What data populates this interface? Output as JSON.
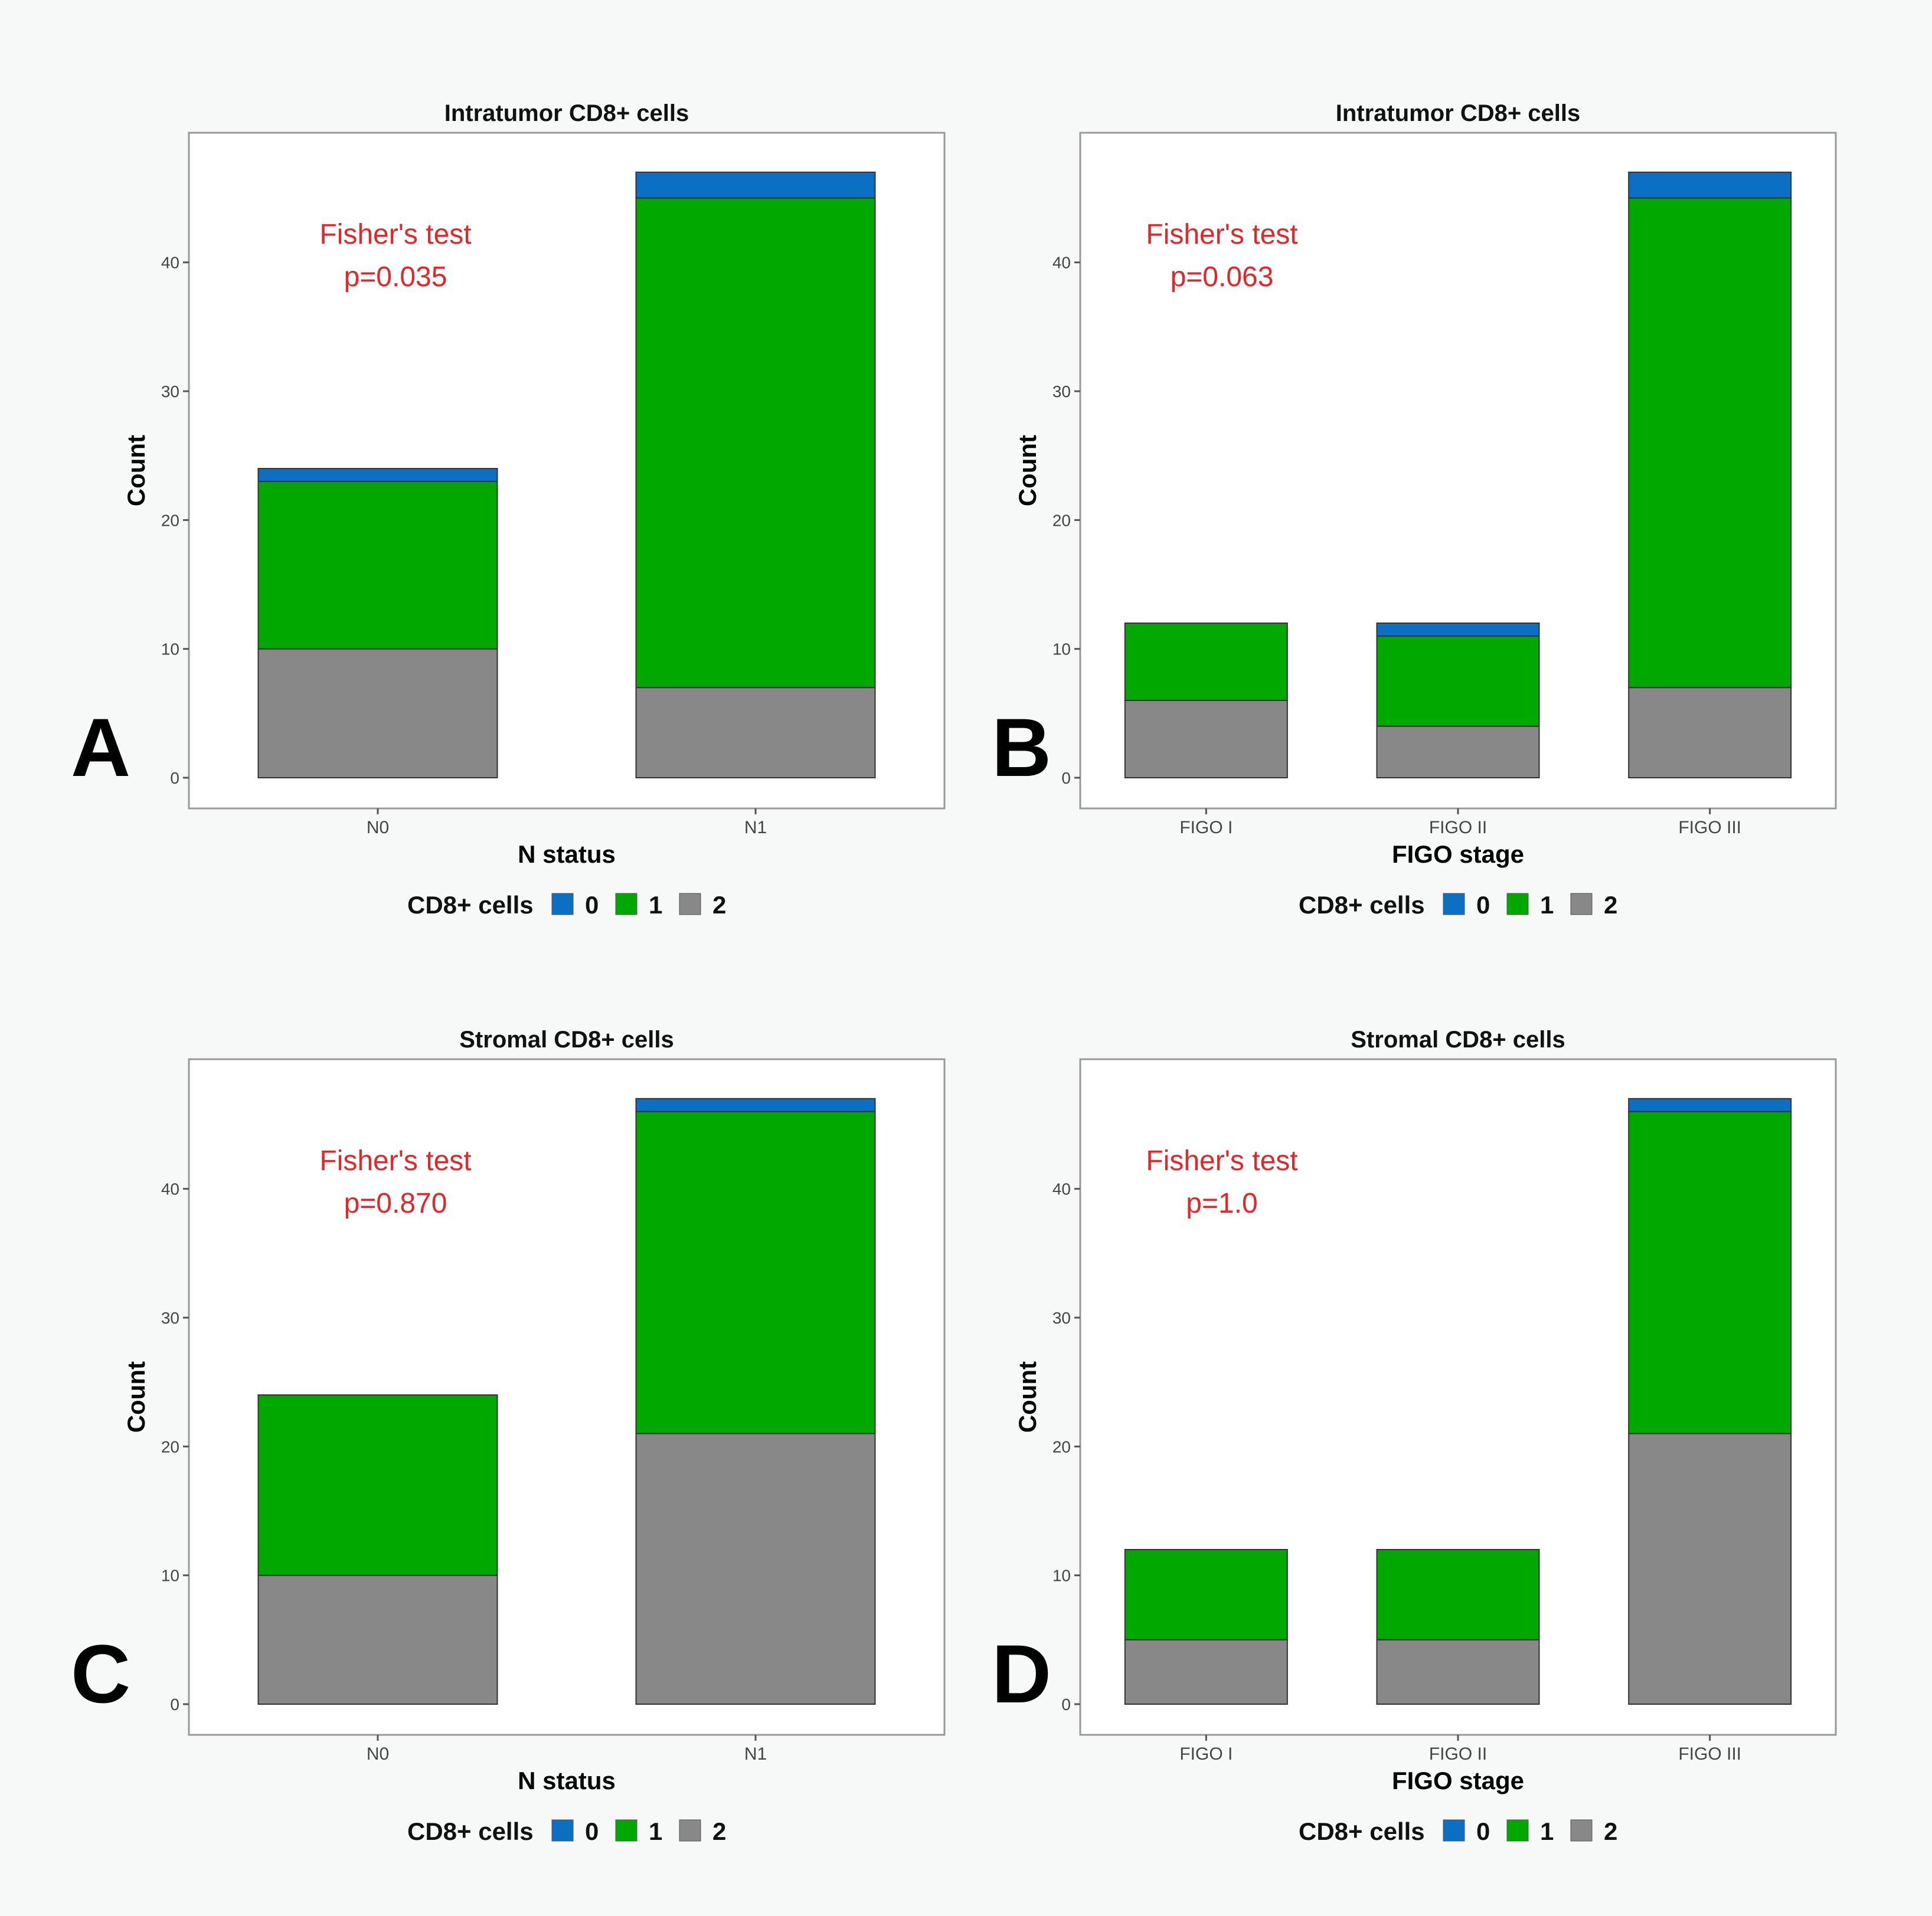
{
  "colors": {
    "0": "#0b6fc4",
    "1": "#00a800",
    "2": "#888888",
    "annotation": "#e02828",
    "background": "#f6f9f7"
  },
  "chart_data": [
    {
      "panel": "A",
      "type": "bar",
      "stacked": true,
      "title": "Intratumor CD8+ cells",
      "xlabel": "N status",
      "ylabel": "Count",
      "ylim": [
        0,
        48
      ],
      "yticks": [
        "0",
        "10",
        "20",
        "30",
        "40"
      ],
      "categories": [
        "N0",
        "N1"
      ],
      "series": [
        {
          "name": "2",
          "values": [
            10,
            7
          ]
        },
        {
          "name": "1",
          "values": [
            13,
            38
          ]
        },
        {
          "name": "0",
          "values": [
            1,
            2
          ]
        }
      ],
      "annotation": [
        "Fisher's test",
        "p=0.035"
      ],
      "legend": {
        "title": "CD8+ cells",
        "entries": [
          "0",
          "1",
          "2"
        ],
        "position": "bottom"
      }
    },
    {
      "panel": "B",
      "type": "bar",
      "stacked": true,
      "title": "Intratumor CD8+ cells",
      "xlabel": "FIGO stage",
      "ylabel": "Count",
      "ylim": [
        0,
        48
      ],
      "yticks": [
        "0",
        "10",
        "20",
        "30",
        "40"
      ],
      "categories": [
        "FIGO I",
        "FIGO II",
        "FIGO III"
      ],
      "series": [
        {
          "name": "2",
          "values": [
            6,
            4,
            7
          ]
        },
        {
          "name": "1",
          "values": [
            6,
            7,
            38
          ]
        },
        {
          "name": "0",
          "values": [
            0,
            1,
            2
          ]
        }
      ],
      "annotation": [
        "Fisher's test",
        "p=0.063"
      ],
      "legend": {
        "title": "CD8+ cells",
        "entries": [
          "0",
          "1",
          "2"
        ],
        "position": "bottom"
      }
    },
    {
      "panel": "C",
      "type": "bar",
      "stacked": true,
      "title": "Stromal CD8+ cells",
      "xlabel": "N status",
      "ylabel": "Count",
      "ylim": [
        0,
        48
      ],
      "yticks": [
        "0",
        "10",
        "20",
        "30",
        "40"
      ],
      "categories": [
        "N0",
        "N1"
      ],
      "series": [
        {
          "name": "2",
          "values": [
            10,
            21
          ]
        },
        {
          "name": "1",
          "values": [
            14,
            25
          ]
        },
        {
          "name": "0",
          "values": [
            0,
            1
          ]
        }
      ],
      "annotation": [
        "Fisher's test",
        "p=0.870"
      ],
      "legend": {
        "title": "CD8+ cells",
        "entries": [
          "0",
          "1",
          "2"
        ],
        "position": "bottom"
      }
    },
    {
      "panel": "D",
      "type": "bar",
      "stacked": true,
      "title": "Stromal CD8+ cells",
      "xlabel": "FIGO stage",
      "ylabel": "Count",
      "ylim": [
        0,
        48
      ],
      "yticks": [
        "0",
        "10",
        "20",
        "30",
        "40"
      ],
      "categories": [
        "FIGO I",
        "FIGO II",
        "FIGO III"
      ],
      "series": [
        {
          "name": "2",
          "values": [
            5,
            5,
            21
          ]
        },
        {
          "name": "1",
          "values": [
            7,
            7,
            25
          ]
        },
        {
          "name": "0",
          "values": [
            0,
            0,
            1
          ]
        }
      ],
      "annotation": [
        "Fisher's test",
        "p=1.0"
      ],
      "legend": {
        "title": "CD8+ cells",
        "entries": [
          "0",
          "1",
          "2"
        ],
        "position": "bottom"
      }
    }
  ]
}
